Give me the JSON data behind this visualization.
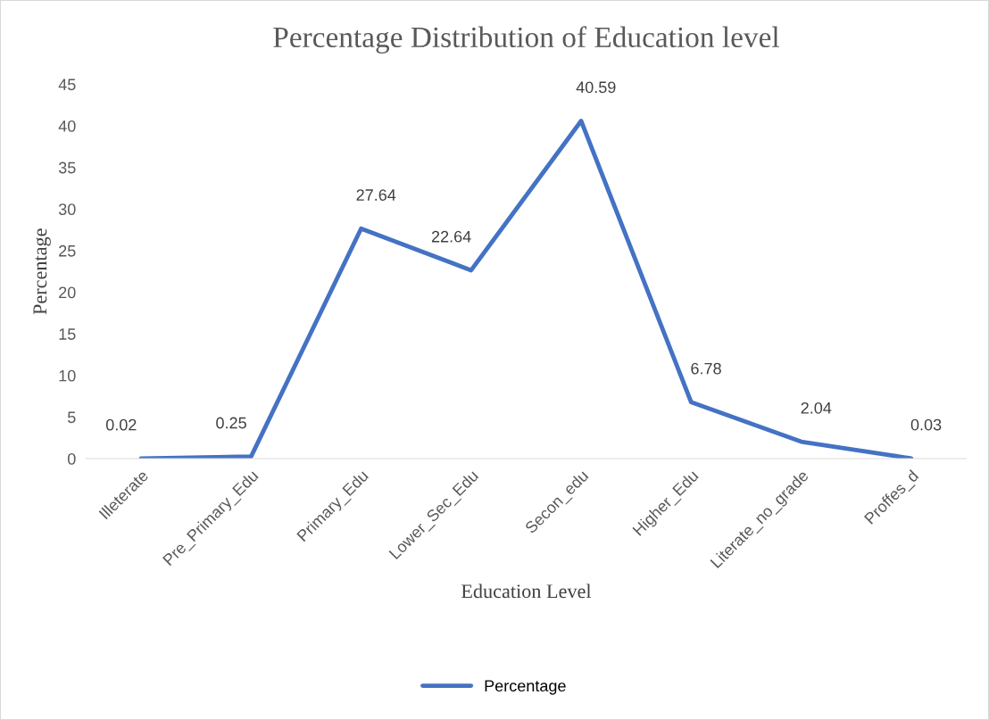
{
  "chart_data": {
    "type": "line",
    "title": "Percentage Distribution of Education level",
    "xlabel": "Education Level",
    "ylabel": "Percentage",
    "categories": [
      "Illeterate",
      "Pre_Primary_Edu",
      "Primary_Edu",
      "Lower_Sec_Edu",
      "Secon_edu",
      "Higher_Edu",
      "Literate_no_grade",
      "Proffes_d"
    ],
    "series": [
      {
        "name": "Percentage",
        "color": "#4472c4",
        "values": [
          0.02,
          0.25,
          27.64,
          22.64,
          40.59,
          6.78,
          2.04,
          0.03
        ]
      }
    ],
    "ylim": [
      0,
      45
    ],
    "yticks": [
      0,
      5,
      10,
      15,
      20,
      25,
      30,
      35,
      40,
      45
    ],
    "data_labels": true,
    "grid": false,
    "legend": "bottom",
    "marker": "none",
    "line_style": "solid"
  }
}
